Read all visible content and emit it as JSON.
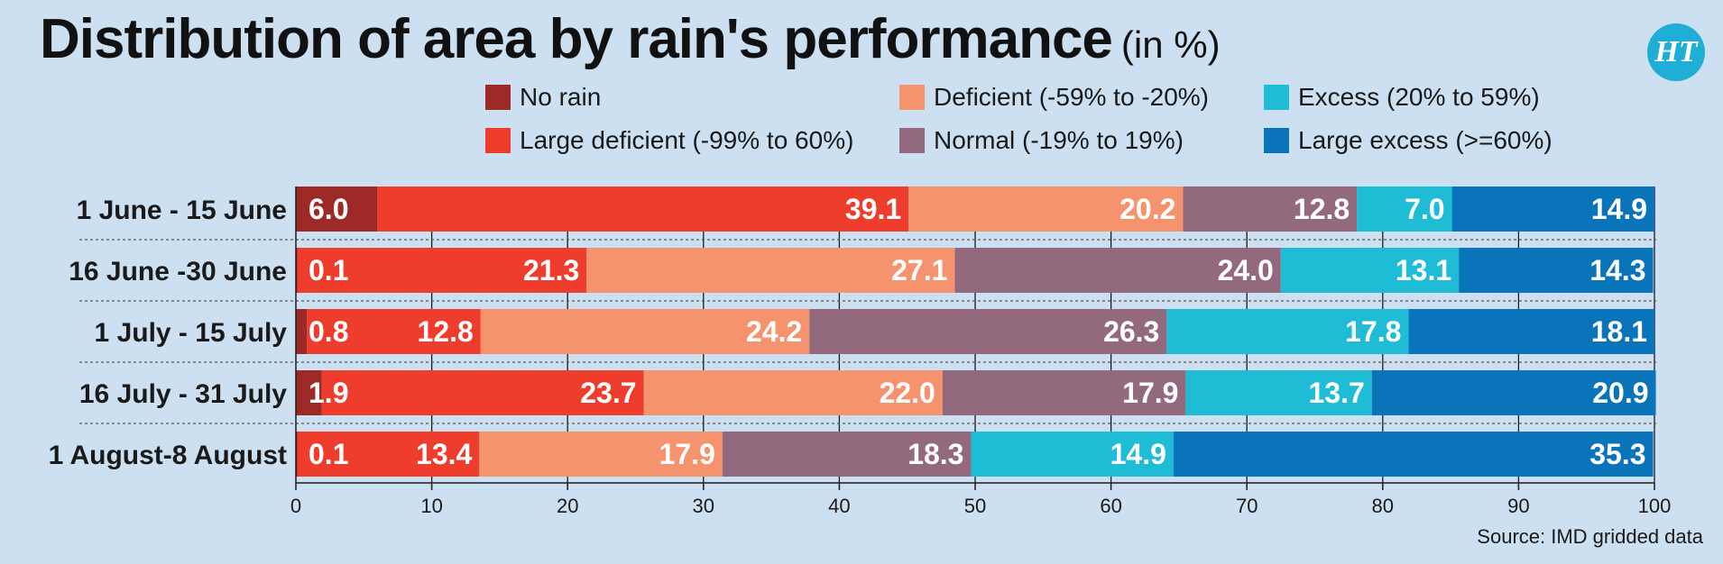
{
  "title": "Distribution of area by rain's performance",
  "title_unit": "(in %)",
  "logo_text": "HT",
  "source": "Source: IMD gridded data",
  "chart_data": {
    "type": "bar",
    "orientation": "horizontal",
    "stacked": true,
    "categories": [
      "1 June - 15 June",
      "16 June -30 June",
      "1 July - 15 July",
      "16 July - 31 July",
      "1 August-8 August"
    ],
    "series": [
      {
        "name": "No rain",
        "color": "#9e2a27",
        "values": [
          6.0,
          0.1,
          0.8,
          1.9,
          0.1
        ]
      },
      {
        "name": "Large deficient (-99% to 60%)",
        "color": "#ee3d2d",
        "values": [
          39.1,
          21.3,
          12.8,
          23.7,
          13.4
        ]
      },
      {
        "name": "Deficient (-59% to -20%)",
        "color": "#f4936d",
        "values": [
          20.2,
          27.1,
          24.2,
          22.0,
          17.9
        ]
      },
      {
        "name": "Normal (-19% to 19%)",
        "color": "#93697e",
        "values": [
          12.8,
          24.0,
          26.3,
          17.9,
          18.3
        ]
      },
      {
        "name": "Excess (20% to 59%)",
        "color": "#1fbcd6",
        "values": [
          7.0,
          13.1,
          17.8,
          13.7,
          14.9
        ]
      },
      {
        "name": "Large excess (>=60%)",
        "color": "#0a74bb",
        "values": [
          14.9,
          14.3,
          18.1,
          20.9,
          35.3
        ]
      }
    ],
    "value_labels": [
      [
        "6.0",
        "39.1",
        "20.2",
        "12.8",
        "7.0",
        "14.9"
      ],
      [
        "0.1",
        "21.3",
        "27.1",
        "24.0",
        "13.1",
        "14.3"
      ],
      [
        "0.8",
        "12.8",
        "24.2",
        "26.3",
        "17.8",
        "18.1"
      ],
      [
        "1.9",
        "23.7",
        "22.0",
        "17.9",
        "13.7",
        "20.9"
      ],
      [
        "0.1",
        "13.4",
        "17.9",
        "18.3",
        "14.9",
        "35.3"
      ]
    ],
    "xlim": [
      0,
      100
    ],
    "xticks": [
      "0",
      "10",
      "20",
      "30",
      "40",
      "50",
      "60",
      "70",
      "80",
      "90",
      "100"
    ],
    "xlabel": "",
    "ylabel": "",
    "grid": "vertical dashed",
    "legend_placement": "top"
  }
}
